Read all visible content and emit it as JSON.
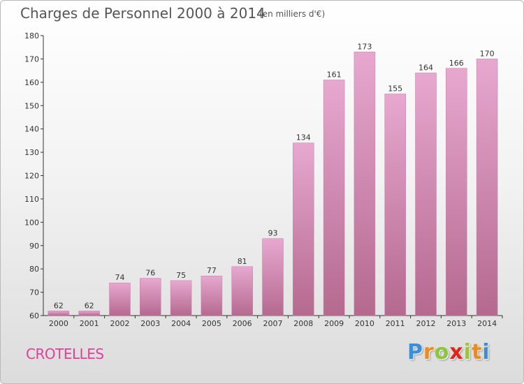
{
  "header": {
    "title": "Charges de Personnel 2000 à 2014",
    "subtitle": "(en milliers d'€)"
  },
  "footer": {
    "commune": "CROTELLES",
    "logo_text": "Proxiti"
  },
  "colors": {
    "bar_top": "#e7a8cf",
    "bar_bottom": "#b5698f",
    "commune": "#e0409a"
  },
  "chart_data": {
    "type": "bar",
    "title": "Charges de Personnel 2000 à 2014",
    "subtitle": "(en milliers d'€)",
    "xlabel": "",
    "ylabel": "",
    "categories": [
      "2000",
      "2001",
      "2002",
      "2003",
      "2004",
      "2005",
      "2006",
      "2007",
      "2008",
      "2009",
      "2010",
      "2011",
      "2012",
      "2013",
      "2014"
    ],
    "values": [
      62,
      62,
      74,
      76,
      75,
      77,
      81,
      93,
      134,
      161,
      173,
      155,
      164,
      166,
      170
    ],
    "ylim": [
      60,
      180
    ],
    "yticks": [
      60,
      70,
      80,
      90,
      100,
      110,
      120,
      130,
      140,
      150,
      160,
      170,
      180
    ],
    "grid": false,
    "legend": "none",
    "data_labels": true
  }
}
